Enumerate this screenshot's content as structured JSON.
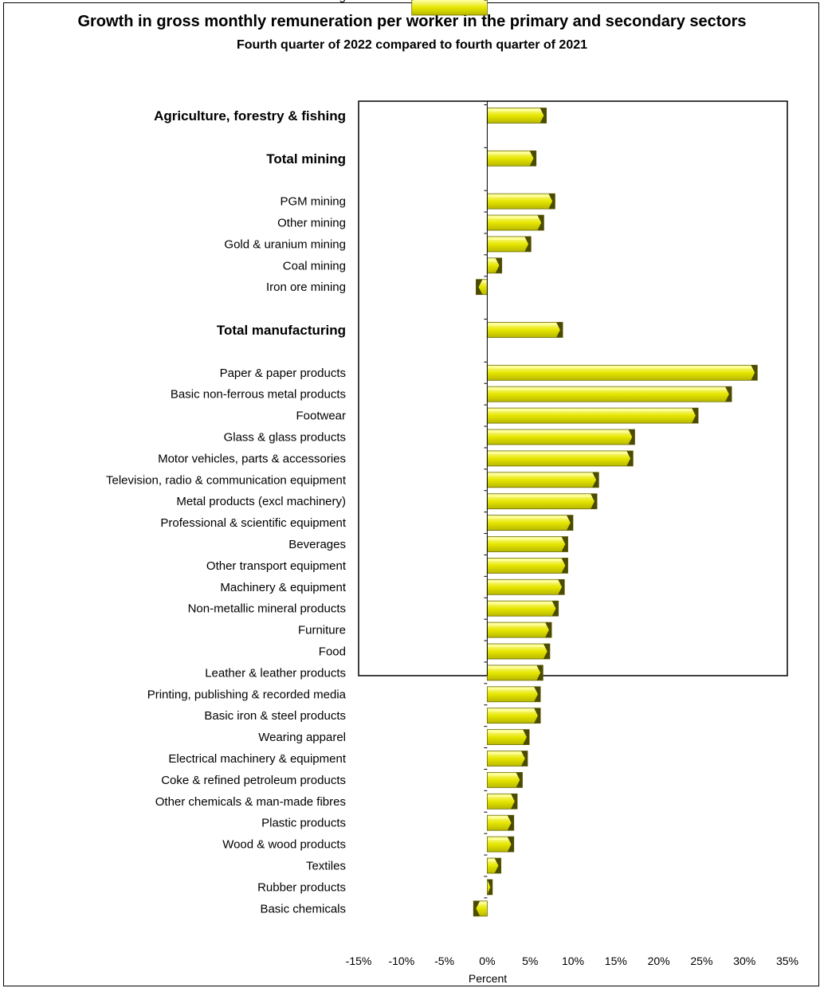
{
  "chart_data": {
    "type": "bar",
    "orientation": "horizontal",
    "title": "Growth in gross monthly remuneration per worker in the primary and secondary sectors",
    "subtitle": "Fourth quarter of 2022 compared to fourth quarter of 2021",
    "xlabel": "Percent",
    "ylabel": "",
    "xlim": [
      -15,
      35
    ],
    "xticks": [
      -15,
      -10,
      -5,
      0,
      5,
      10,
      15,
      20,
      25,
      30,
      35
    ],
    "tick_suffix": "%",
    "grid": false,
    "legend": "none",
    "bar_color": "#E6E600",
    "bar_highlight": "#FFFF99",
    "bar_shadow": "#4A4A00",
    "categories": [
      {
        "label": "Agriculture, forestry & fishing",
        "value": 6.9,
        "bold": true
      },
      {
        "label": "Total mining",
        "value": 5.7,
        "bold": true
      },
      {
        "label": "PGM mining",
        "value": 7.9,
        "bold": false
      },
      {
        "label": "Other mining",
        "value": 6.6,
        "bold": false
      },
      {
        "label": "Gold & uranium mining",
        "value": 5.1,
        "bold": false
      },
      {
        "label": "Coal mining",
        "value": 1.7,
        "bold": false
      },
      {
        "label": "Iron ore mining",
        "value": -1.3,
        "bold": false
      },
      {
        "label": "Total manufacturing",
        "value": 8.8,
        "bold": true
      },
      {
        "label": "Paper & paper products",
        "value": 31.5,
        "bold": false
      },
      {
        "label": "Basic non-ferrous metal products",
        "value": 28.5,
        "bold": false
      },
      {
        "label": "Footwear",
        "value": 24.6,
        "bold": false
      },
      {
        "label": "Glass & glass products",
        "value": 17.2,
        "bold": false
      },
      {
        "label": "Motor vehicles, parts & accessories",
        "value": 17.0,
        "bold": false
      },
      {
        "label": "Television, radio & communication equipment",
        "value": 13.0,
        "bold": false
      },
      {
        "label": "Metal products (excl machinery)",
        "value": 12.8,
        "bold": false
      },
      {
        "label": "Professional & scientific equipment",
        "value": 10.0,
        "bold": false
      },
      {
        "label": "Beverages",
        "value": 9.4,
        "bold": false
      },
      {
        "label": "Other transport equipment",
        "value": 9.4,
        "bold": false
      },
      {
        "label": "Machinery & equipment",
        "value": 9.0,
        "bold": false
      },
      {
        "label": "Non-metallic mineral products",
        "value": 8.3,
        "bold": false
      },
      {
        "label": "Furniture",
        "value": 7.5,
        "bold": false
      },
      {
        "label": "Food",
        "value": 7.3,
        "bold": false
      },
      {
        "label": "Leather & leather products",
        "value": 6.5,
        "bold": false
      },
      {
        "label": "Printing, publishing & recorded media",
        "value": 6.2,
        "bold": false
      },
      {
        "label": "Basic iron & steel products",
        "value": 6.2,
        "bold": false
      },
      {
        "label": "Wearing apparel",
        "value": 4.9,
        "bold": false
      },
      {
        "label": "Electrical machinery & equipment",
        "value": 4.7,
        "bold": false
      },
      {
        "label": "Coke & refined petroleum products",
        "value": 4.1,
        "bold": false
      },
      {
        "label": "Other chemicals & man-made fibres",
        "value": 3.5,
        "bold": false
      },
      {
        "label": "Plastic products",
        "value": 3.1,
        "bold": false
      },
      {
        "label": "Wood & wood products",
        "value": 3.1,
        "bold": false
      },
      {
        "label": "Textiles",
        "value": 1.6,
        "bold": false
      },
      {
        "label": "Rubber products",
        "value": 0.6,
        "bold": false
      },
      {
        "label": "Basic chemicals",
        "value": -1.6,
        "bold": false
      },
      {
        "label": "Other manufacturing",
        "value": -8.8,
        "bold": false
      }
    ]
  }
}
